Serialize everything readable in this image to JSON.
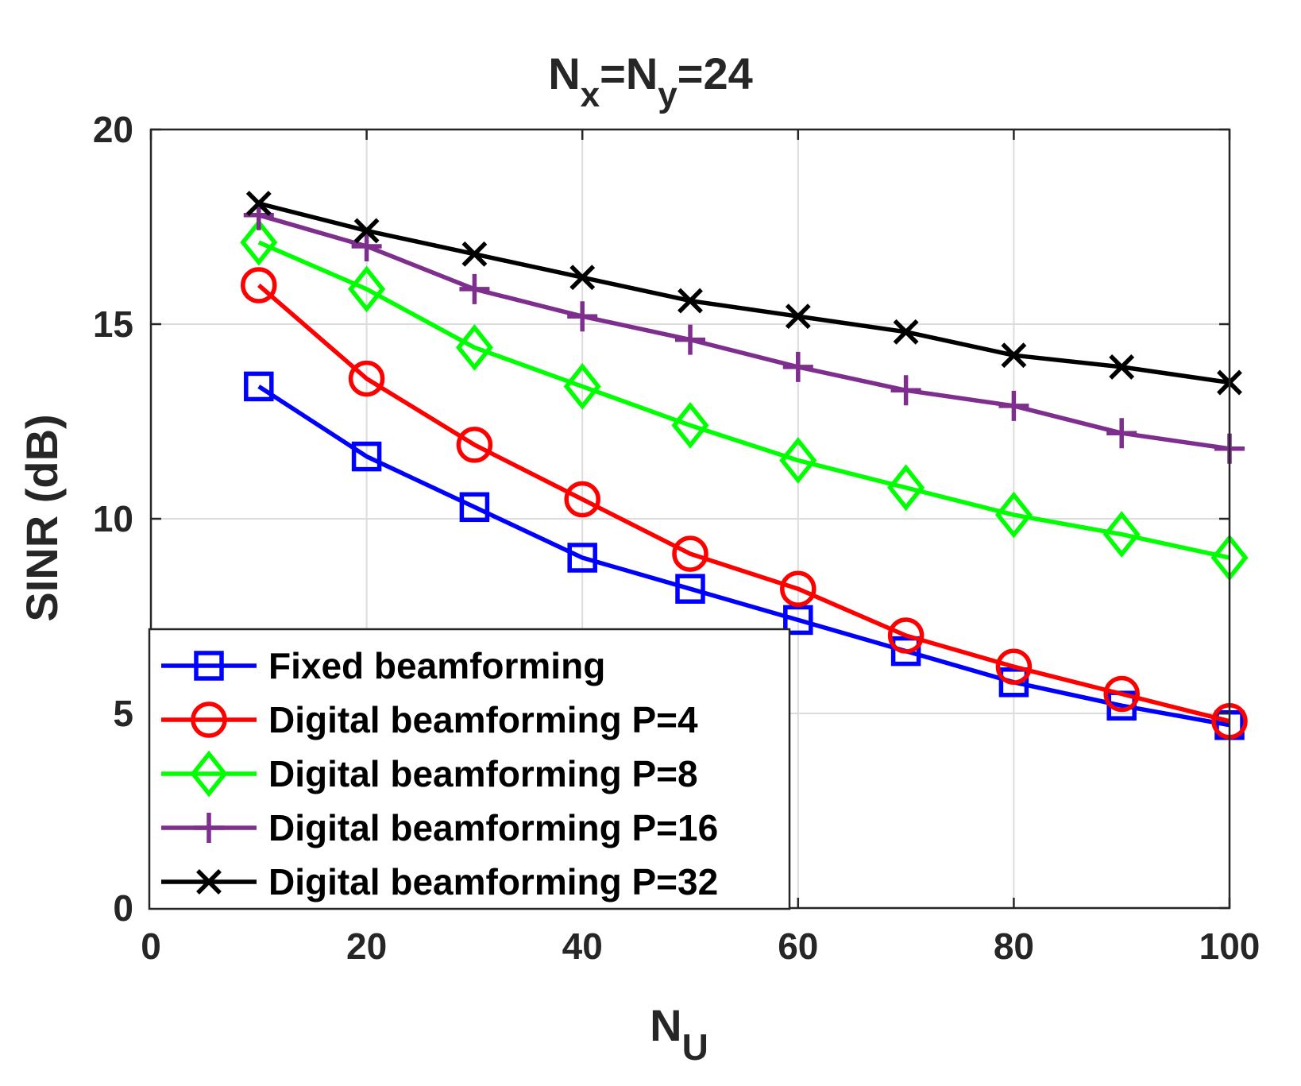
{
  "chart_data": {
    "type": "line",
    "title": {
      "base": "N",
      "sub1": "x",
      "mid": "=N",
      "sub2": "y",
      "tail": "=24"
    },
    "xlabel": {
      "base": "N",
      "sub": "U"
    },
    "ylabel": "SINR (dB)",
    "xlim": [
      0,
      100
    ],
    "ylim": [
      0,
      20
    ],
    "xticks": [
      0,
      20,
      40,
      60,
      80,
      100
    ],
    "xtick_labels": [
      "0",
      "20",
      "40",
      "60",
      "80",
      "100"
    ],
    "yticks": [
      0,
      5,
      10,
      15,
      20
    ],
    "ytick_labels": [
      "0",
      "5",
      "10",
      "15",
      "20"
    ],
    "grid": true,
    "legend_position": "bottom-left",
    "x": [
      10,
      20,
      30,
      40,
      50,
      60,
      70,
      80,
      90,
      100
    ],
    "series": [
      {
        "name": "Fixed beamforming",
        "color": "#0000ff",
        "marker": "square",
        "values": [
          13.4,
          11.6,
          10.3,
          9.0,
          8.2,
          7.4,
          6.6,
          5.8,
          5.2,
          4.7
        ]
      },
      {
        "name": "Digital beamforming P=4",
        "color": "#ff0000",
        "marker": "circle",
        "values": [
          16.0,
          13.6,
          11.9,
          10.5,
          9.1,
          8.2,
          7.0,
          6.2,
          5.5,
          4.8
        ]
      },
      {
        "name": "Digital beamforming P=8",
        "color": "#00ff00",
        "marker": "diamond",
        "values": [
          17.1,
          15.9,
          14.4,
          13.4,
          12.4,
          11.5,
          10.8,
          10.1,
          9.6,
          9.0
        ]
      },
      {
        "name": "Digital beamforming P=16",
        "color": "#7e2f8e",
        "marker": "plus",
        "values": [
          17.8,
          17.0,
          15.9,
          15.2,
          14.6,
          13.9,
          13.3,
          12.9,
          12.2,
          11.8
        ]
      },
      {
        "name": "Digital beamforming P=32",
        "color": "#000000",
        "marker": "x",
        "values": [
          18.1,
          17.4,
          16.8,
          16.2,
          15.6,
          15.2,
          14.8,
          14.2,
          13.9,
          13.5
        ]
      }
    ]
  }
}
